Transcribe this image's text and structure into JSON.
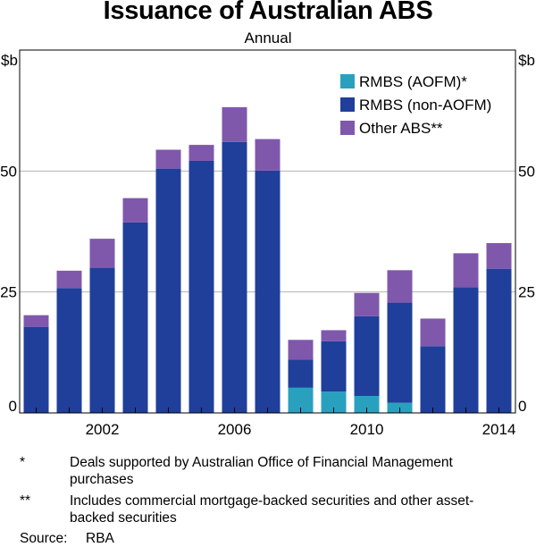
{
  "title": "Issuance of Australian ABS",
  "subtitle": "Annual",
  "colors": {
    "rmbs_aofm": "#2aa0bf",
    "rmbs_non_aofm": "#1f3f9b",
    "other_abs": "#7f58ac",
    "grid": "#b3b3b3",
    "axis": "#000000"
  },
  "chart_data": {
    "type": "bar",
    "stacked": true,
    "categories": [
      "2000",
      "2001",
      "2002",
      "2003",
      "2004",
      "2005",
      "2006",
      "2007",
      "2008",
      "2009",
      "2010",
      "2011",
      "2012",
      "2013",
      "2014"
    ],
    "series": [
      {
        "name": "RMBS (AOFM)*",
        "color": "#2aa0bf",
        "values": [
          0,
          0,
          0,
          0,
          0,
          0,
          0,
          0,
          5.2,
          4.4,
          3.5,
          2.1,
          0,
          0,
          0
        ]
      },
      {
        "name": "RMBS (non-AOFM)",
        "color": "#1f3f9b",
        "values": [
          17.8,
          25.8,
          30.0,
          39.4,
          50.5,
          52.1,
          56.0,
          50.1,
          5.8,
          10.4,
          16.5,
          20.7,
          13.8,
          26.0,
          29.8
        ]
      },
      {
        "name": "Other ABS**",
        "color": "#7f58ac",
        "values": [
          2.4,
          3.6,
          6.0,
          5.0,
          3.9,
          3.3,
          7.2,
          6.5,
          4.1,
          2.3,
          4.8,
          6.7,
          5.7,
          7.0,
          5.3
        ]
      }
    ],
    "x_tick_labels": [
      "2002",
      "2006",
      "2010",
      "2014"
    ],
    "ylabel_left": "$b",
    "ylabel_right": "$b",
    "ylim": [
      0,
      75
    ],
    "y_ticks": [
      0,
      25,
      50
    ],
    "grid": true,
    "legend_position": "top-right"
  },
  "footnotes": [
    {
      "mark": "*",
      "text": "Deals supported by Australian Office of Financial Management purchases"
    },
    {
      "mark": "**",
      "text": "Includes commercial mortgage-backed securities and other asset-backed securities"
    }
  ],
  "source": {
    "label": "Source:",
    "value": "RBA"
  }
}
